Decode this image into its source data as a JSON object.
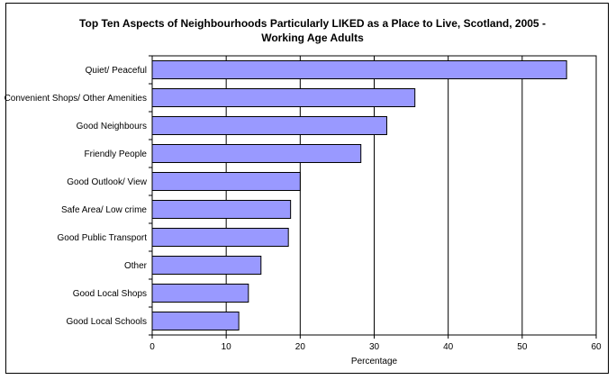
{
  "chart_data": {
    "type": "bar",
    "orientation": "horizontal",
    "title": "Top Ten Aspects of Neighbourhoods Particularly LIKED as a Place to Live, Scotland, 2005 - Working Age Adults",
    "xlabel": "Percentage",
    "ylabel": "",
    "xlim": [
      0,
      60
    ],
    "xticks": [
      "0",
      "10",
      "20",
      "30",
      "40",
      "50",
      "60"
    ],
    "grid": "vertical",
    "legend": "none",
    "bar_color": "#9999ff",
    "categories": [
      "Quiet/ Peaceful",
      "Convenient Shops/ Other Amenities",
      "Good Neighbours",
      "Friendly People",
      "Good Outlook/ View",
      "Safe Area/ Low crime",
      "Good Public Transport",
      "Other",
      "Good Local Shops",
      "Good Local Schools"
    ],
    "values": [
      56,
      35.5,
      31.7,
      28.2,
      20,
      18.7,
      18.4,
      14.7,
      13,
      11.7
    ]
  }
}
